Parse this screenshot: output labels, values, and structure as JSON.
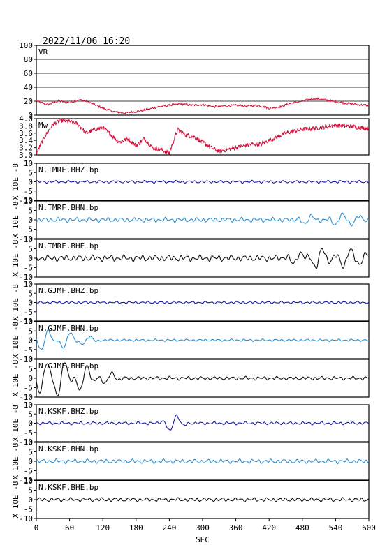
{
  "header": {
    "timestamp": "2022/11/06 16:20"
  },
  "colors": {
    "vr": "#d0103a",
    "mw": "#d0103a",
    "bhz": "#1a1aa8",
    "bhn": "#2a8fd0",
    "bhe": "#111111",
    "frame": "#000000",
    "grid": "#000000"
  },
  "chart_data": {
    "type": "line",
    "xlabel": "SEC",
    "xlim": [
      0,
      600
    ],
    "xticks": [
      "0",
      "60",
      "120",
      "180",
      "240",
      "300",
      "360",
      "420",
      "480",
      "540",
      "600"
    ],
    "panels": [
      {
        "id": "vr",
        "label": "VR",
        "ylabel": "",
        "ylim": [
          0,
          100
        ],
        "yticks": [
          "100",
          "80",
          "60",
          "40",
          "20",
          "0"
        ],
        "grid": true,
        "series": {
          "type": "vr",
          "points": [
            [
              0,
              20
            ],
            [
              20,
              15
            ],
            [
              40,
              20
            ],
            [
              60,
              18
            ],
            [
              80,
              22
            ],
            [
              100,
              17
            ],
            [
              120,
              10
            ],
            [
              140,
              5
            ],
            [
              160,
              3
            ],
            [
              180,
              5
            ],
            [
              200,
              8
            ],
            [
              220,
              12
            ],
            [
              240,
              14
            ],
            [
              260,
              16
            ],
            [
              280,
              14
            ],
            [
              300,
              15
            ],
            [
              320,
              12
            ],
            [
              340,
              13
            ],
            [
              360,
              14
            ],
            [
              380,
              13
            ],
            [
              400,
              14
            ],
            [
              420,
              10
            ],
            [
              440,
              12
            ],
            [
              460,
              17
            ],
            [
              480,
              20
            ],
            [
              500,
              24
            ],
            [
              520,
              22
            ],
            [
              540,
              19
            ],
            [
              560,
              17
            ],
            [
              580,
              15
            ],
            [
              600,
              14
            ]
          ]
        }
      },
      {
        "id": "mw",
        "label": "Mw",
        "ylabel": "",
        "ylim": [
          3.0,
          4.0
        ],
        "yticks": [
          "4.0",
          "3.8",
          "3.6",
          "3.4",
          "3.2",
          "3.0"
        ],
        "grid": false,
        "series": {
          "type": "mw",
          "points": [
            [
              0,
              3.05
            ],
            [
              15,
              3.5
            ],
            [
              30,
              3.85
            ],
            [
              45,
              3.95
            ],
            [
              60,
              3.92
            ],
            [
              75,
              3.85
            ],
            [
              90,
              3.6
            ],
            [
              105,
              3.7
            ],
            [
              120,
              3.75
            ],
            [
              135,
              3.55
            ],
            [
              150,
              3.35
            ],
            [
              165,
              3.45
            ],
            [
              180,
              3.25
            ],
            [
              195,
              3.45
            ],
            [
              210,
              3.2
            ],
            [
              225,
              3.15
            ],
            [
              240,
              3.05
            ],
            [
              255,
              3.7
            ],
            [
              270,
              3.55
            ],
            [
              285,
              3.5
            ],
            [
              300,
              3.35
            ],
            [
              315,
              3.2
            ],
            [
              330,
              3.1
            ],
            [
              345,
              3.15
            ],
            [
              360,
              3.2
            ],
            [
              375,
              3.25
            ],
            [
              390,
              3.3
            ],
            [
              405,
              3.3
            ],
            [
              420,
              3.4
            ],
            [
              435,
              3.5
            ],
            [
              450,
              3.6
            ],
            [
              465,
              3.65
            ],
            [
              480,
              3.7
            ],
            [
              495,
              3.72
            ],
            [
              510,
              3.75
            ],
            [
              525,
              3.78
            ],
            [
              540,
              3.82
            ],
            [
              555,
              3.8
            ],
            [
              570,
              3.78
            ],
            [
              585,
              3.75
            ],
            [
              600,
              3.72
            ]
          ]
        }
      },
      {
        "id": "tmrf-bhz",
        "label": "N.TMRF.BHZ.bp",
        "ylabel": "X 10E -8",
        "ylim": [
          -10,
          10
        ],
        "yticks": [
          "10",
          "5",
          "0",
          "-5",
          "-10"
        ],
        "grid": false,
        "series": {
          "type": "bhz",
          "amp": 0.7,
          "events": []
        }
      },
      {
        "id": "tmrf-bhn",
        "label": "N.TMRF.BHN.bp",
        "ylabel": "X 10E -8",
        "ylim": [
          -10,
          10
        ],
        "yticks": [
          "10",
          "5",
          "0",
          "-5",
          "-10"
        ],
        "grid": false,
        "series": {
          "type": "bhn",
          "amp": 1.2,
          "events": [
            [
              490,
              3.0
            ],
            [
              545,
              3.5
            ],
            [
              575,
              2.5
            ]
          ]
        }
      },
      {
        "id": "tmrf-bhe",
        "label": "N.TMRF.BHE.bp",
        "ylabel": "X 10E -8",
        "ylim": [
          -10,
          10
        ],
        "yticks": [
          "10",
          "5",
          "0",
          "-5",
          "-10"
        ],
        "grid": false,
        "series": {
          "type": "bhe",
          "amp": 1.6,
          "events": [
            [
              470,
              3.5
            ],
            [
              510,
              5.5
            ],
            [
              560,
              4.5
            ],
            [
              590,
              2.5
            ]
          ]
        }
      },
      {
        "id": "gjmf-bhz",
        "label": "N.GJMF.BHZ.bp",
        "ylabel": "X 10E -8",
        "ylim": [
          -10,
          10
        ],
        "yticks": [
          "10",
          "5",
          "0",
          "-5",
          "-10"
        ],
        "grid": false,
        "series": {
          "type": "bhz",
          "amp": 0.6,
          "events": []
        }
      },
      {
        "id": "gjmf-bhn",
        "label": "N.GJMF.BHN.bp",
        "ylabel": "X 10E -8",
        "ylim": [
          -10,
          10
        ],
        "yticks": [
          "10",
          "5",
          "0",
          "-5",
          "-10"
        ],
        "grid": false,
        "series": {
          "type": "bhn",
          "amp": 0.6,
          "events": [
            [
              15,
              6.0
            ],
            [
              55,
              5.0
            ],
            [
              90,
              2.5
            ]
          ]
        }
      },
      {
        "id": "gjmf-bhe",
        "label": "N.GJMF.BHE.bp",
        "ylabel": "X 10E -8",
        "ylim": [
          -10,
          10
        ],
        "yticks": [
          "10",
          "5",
          "0",
          "-5",
          "-10"
        ],
        "grid": false,
        "series": {
          "type": "bhe",
          "amp": 0.9,
          "events": [
            [
              12,
              8.5
            ],
            [
              45,
              10.0
            ],
            [
              85,
              8.0
            ],
            [
              130,
              3.0
            ]
          ]
        }
      },
      {
        "id": "kskf-bhz",
        "label": "N.KSKF.BHZ.bp",
        "ylabel": "X 10E -8",
        "ylim": [
          -10,
          10
        ],
        "yticks": [
          "10",
          "5",
          "0",
          "-5",
          "-10"
        ],
        "grid": false,
        "series": {
          "type": "bhz",
          "amp": 0.8,
          "events": [
            [
              247,
              5.0
            ]
          ]
        }
      },
      {
        "id": "kskf-bhn",
        "label": "N.KSKF.BHN.bp",
        "ylabel": "X 10E -8",
        "ylim": [
          -10,
          10
        ],
        "yticks": [
          "10",
          "5",
          "0",
          "-5",
          "-10"
        ],
        "grid": false,
        "series": {
          "type": "bhn",
          "amp": 1.1,
          "events": []
        }
      },
      {
        "id": "kskf-bhe",
        "label": "N.KSKF.BHE.bp",
        "ylabel": "X 10E -8",
        "ylim": [
          -10,
          10
        ],
        "yticks": [
          "10",
          "5",
          "0",
          "-5",
          "-10"
        ],
        "grid": false,
        "series": {
          "type": "bhe",
          "amp": 1.0,
          "events": []
        }
      }
    ]
  }
}
